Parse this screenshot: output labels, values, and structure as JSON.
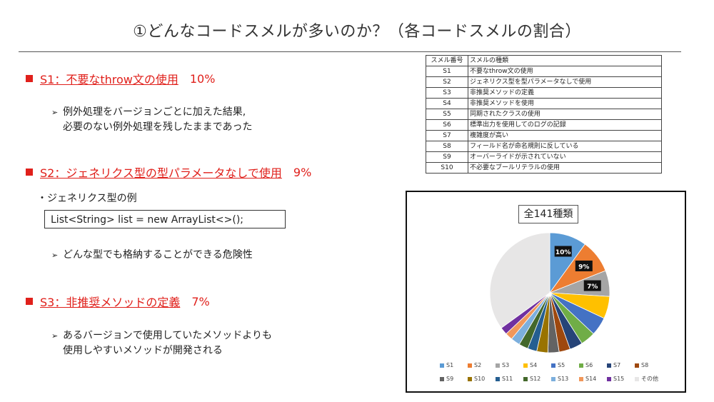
{
  "title": "①どんなコードスメルが多いのか？（各コードスメルの割合）",
  "sections": [
    {
      "label": "S1：不要なthrow文の使用",
      "pct": "10%"
    },
    {
      "label": "S2：ジェネリクス型の型パラメータなしで使用",
      "pct": "9%"
    },
    {
      "label": "S3：非推奨メソッドの定義",
      "pct": "7%"
    }
  ],
  "s1_bullet_1": "例外処理をバージョンごとに加えた結果,",
  "s1_bullet_2": "必要のない例外処理を残したままであった",
  "s2_example_label": "・ジェネリクス型の例",
  "s2_code": "List<String> list  = new ArrayList<>();",
  "s2_bullet": "どんな型でも格納することができる危険性",
  "s3_bullet_1": "あるバージョンで使用していたメソッドよりも",
  "s3_bullet_2": "使用しやすいメソッドが開発される",
  "table": {
    "headers": [
      "スメル番号",
      "スメルの種類"
    ],
    "rows": [
      [
        "S1",
        "不要なthrow文の使用"
      ],
      [
        "S2",
        "ジェネリクス型を型パラメータなしで使用"
      ],
      [
        "S3",
        "非推奨メソッドの定義"
      ],
      [
        "S4",
        "非推奨メソッドを使用"
      ],
      [
        "S5",
        "同期されたクラスの使用"
      ],
      [
        "S6",
        "標準出力を使用してのログの記録"
      ],
      [
        "S7",
        "複雑度が高い"
      ],
      [
        "S8",
        "フィールド名が命名規則に反している"
      ],
      [
        "S9",
        "オーバーライドが示されていない"
      ],
      [
        "S10",
        "不必要なブールリテラルの使用"
      ]
    ]
  },
  "chart_data": {
    "type": "pie",
    "title": "全141種類",
    "categories": [
      "S1",
      "S2",
      "S3",
      "S4",
      "S5",
      "S6",
      "S7",
      "S8",
      "S9",
      "S10",
      "S11",
      "S12",
      "S13",
      "S14",
      "S15",
      "その他"
    ],
    "values": [
      10,
      9,
      7,
      6,
      5,
      4,
      3.5,
      3,
      3,
      3,
      2.5,
      2.5,
      2.5,
      2,
      2,
      35
    ],
    "data_labels": [
      "10%",
      "9%",
      "7%",
      "",
      "",
      "",
      "",
      "",
      "",
      "",
      "",
      "",
      "",
      "",
      "",
      ""
    ],
    "colors": [
      "#5b9bd5",
      "#ed7d31",
      "#a5a5a5",
      "#ffc000",
      "#4472c4",
      "#70ad47",
      "#264478",
      "#9e480e",
      "#636363",
      "#997300",
      "#255e91",
      "#43682b",
      "#7cafdd",
      "#f1975a",
      "#7030a0",
      "#e7e6e6"
    ],
    "legend_position": "bottom"
  }
}
